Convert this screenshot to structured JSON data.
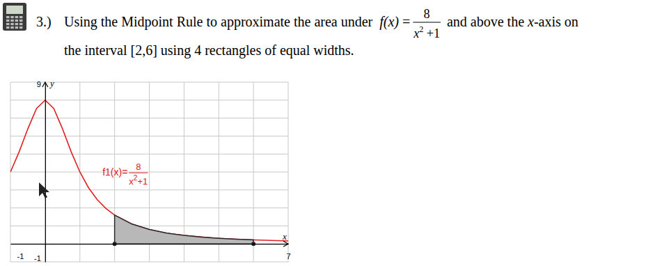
{
  "problem": {
    "number": "3.)",
    "line1_before": "Using the Midpoint Rule to approximate the area under",
    "function_name": "f(x)",
    "equals": "=",
    "numerator": "8",
    "denominator_base": "x",
    "denominator_exp": "2",
    "denominator_rest": " +1",
    "line1_after": "and above the",
    "axis_var": "x",
    "axis_word": "-axis on",
    "line2": "the interval [2,6] using 4 rectangles of equal widths."
  },
  "chart_data": {
    "type": "line",
    "xlim": [
      -1,
      7
    ],
    "ylim": [
      -1,
      9
    ],
    "xticks": [
      -1,
      7
    ],
    "yticks": [
      -1,
      9
    ],
    "xgrid": [
      -1,
      0,
      1,
      2,
      3,
      4,
      5,
      6,
      7
    ],
    "ygrid": [
      -1,
      0,
      1,
      2,
      3,
      4,
      5,
      6,
      7,
      8,
      9
    ],
    "grid": true,
    "xlabel": "x",
    "ylabel": "y",
    "annotation": {
      "prefix": "f1(x)=",
      "numerator": "8",
      "denominator_base": "x",
      "denominator_exp": "2",
      "denominator_rest": "+1"
    },
    "x": [
      -1,
      -0.75,
      -0.5,
      -0.25,
      0,
      0.25,
      0.5,
      0.75,
      1,
      1.25,
      1.5,
      1.75,
      2,
      2.5,
      3,
      3.5,
      4,
      4.5,
      5,
      5.5,
      6,
      6.5,
      7
    ],
    "interval": [
      2,
      6
    ],
    "series": [
      {
        "type": "line",
        "color": "#e02020",
        "values": [
          4,
          5.12,
          6.4,
          7.53,
          8,
          7.53,
          6.4,
          5.12,
          4,
          3.12,
          2.46,
          1.97,
          1.6,
          1.1,
          0.8,
          0.6,
          0.47,
          0.38,
          0.31,
          0.26,
          0.22,
          0.19,
          0.16
        ]
      },
      {
        "type": "area",
        "color": "#b8b8b8",
        "x": [
          2,
          2.5,
          3,
          3.5,
          4,
          4.5,
          5,
          5.5,
          6
        ],
        "values": [
          1.6,
          1.1,
          0.8,
          0.6,
          0.47,
          0.38,
          0.31,
          0.26,
          0.22
        ]
      }
    ]
  }
}
